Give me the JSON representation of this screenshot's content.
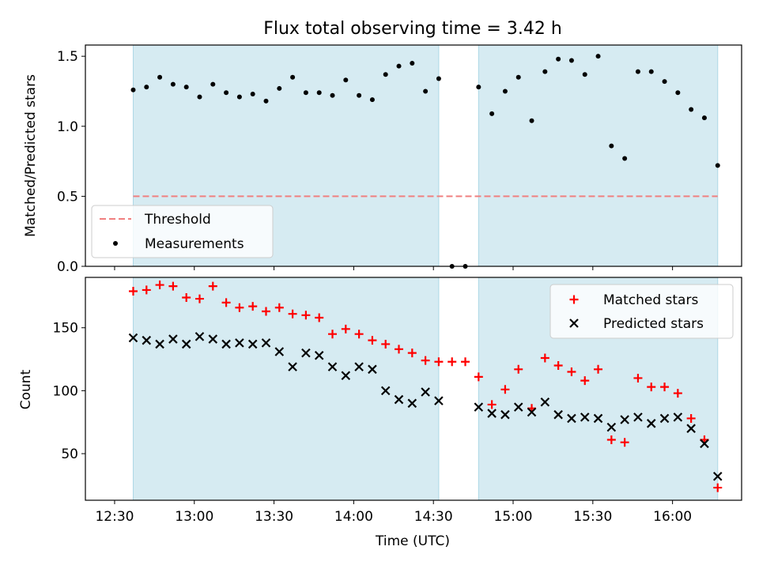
{
  "title": "Flux total observing time = 3.42 h",
  "colors": {
    "shade": "#add8e6",
    "threshold": "#f08080",
    "matched": "#ff0000",
    "predicted": "#000000",
    "measurement": "#000000"
  },
  "chart_data": [
    {
      "type": "scatter",
      "ylabel": "Matched/Predicted stars",
      "xlim": [
        "12:19",
        "16:26"
      ],
      "ylim": [
        0,
        1.58
      ],
      "yticks": [
        0.0,
        0.5,
        1.0,
        1.5
      ],
      "ytick_labels": [
        "0.0",
        "0.5",
        "1.0",
        "1.5"
      ],
      "legend_position": "lower-left",
      "shaded_intervals": [
        [
          "12:37",
          "14:32"
        ],
        [
          "14:47",
          "16:17"
        ]
      ],
      "threshold": {
        "name": "Threshold",
        "value": 0.5,
        "x_range": [
          "12:37",
          "16:17"
        ]
      },
      "series": [
        {
          "name": "Measurements",
          "x": [
            "12:37",
            "12:42",
            "12:47",
            "12:52",
            "12:57",
            "13:02",
            "13:07",
            "13:12",
            "13:17",
            "13:22",
            "13:27",
            "13:32",
            "13:37",
            "13:42",
            "13:47",
            "13:52",
            "13:57",
            "14:02",
            "14:07",
            "14:12",
            "14:17",
            "14:22",
            "14:27",
            "14:32",
            "14:37",
            "14:42",
            "14:47",
            "14:52",
            "14:57",
            "15:02",
            "15:07",
            "15:12",
            "15:17",
            "15:22",
            "15:27",
            "15:32",
            "15:37",
            "15:42",
            "15:47",
            "15:52",
            "15:57",
            "16:02",
            "16:07",
            "16:12",
            "16:17"
          ],
          "y": [
            1.26,
            1.28,
            1.35,
            1.3,
            1.28,
            1.21,
            1.3,
            1.24,
            1.21,
            1.23,
            1.18,
            1.27,
            1.35,
            1.24,
            1.24,
            1.22,
            1.33,
            1.22,
            1.19,
            1.37,
            1.43,
            1.45,
            1.25,
            1.34,
            0.0,
            0.0,
            1.28,
            1.09,
            1.25,
            1.35,
            1.04,
            1.39,
            1.48,
            1.47,
            1.37,
            1.5,
            0.86,
            0.77,
            1.39,
            1.39,
            1.32,
            1.24,
            1.12,
            1.06,
            0.72
          ]
        }
      ]
    },
    {
      "type": "scatter",
      "xlabel": "Time (UTC)",
      "ylabel": "Count",
      "xlim": [
        "12:19",
        "16:26"
      ],
      "ylim": [
        13,
        190
      ],
      "xticks": [
        "12:30",
        "13:00",
        "13:30",
        "14:00",
        "14:30",
        "15:00",
        "15:30",
        "16:00"
      ],
      "yticks": [
        50,
        100,
        150
      ],
      "ytick_labels": [
        "50",
        "100",
        "150"
      ],
      "legend_position": "top-right",
      "shaded_intervals": [
        [
          "12:37",
          "14:32"
        ],
        [
          "14:47",
          "16:17"
        ]
      ],
      "series": [
        {
          "name": "Matched stars",
          "marker": "plus",
          "x": [
            "12:37",
            "12:42",
            "12:47",
            "12:52",
            "12:57",
            "13:02",
            "13:07",
            "13:12",
            "13:17",
            "13:22",
            "13:27",
            "13:32",
            "13:37",
            "13:42",
            "13:47",
            "13:52",
            "13:57",
            "14:02",
            "14:07",
            "14:12",
            "14:17",
            "14:22",
            "14:27",
            "14:32",
            "14:37",
            "14:42",
            "14:47",
            "14:52",
            "14:57",
            "15:02",
            "15:07",
            "15:12",
            "15:17",
            "15:22",
            "15:27",
            "15:32",
            "15:37",
            "15:42",
            "15:47",
            "15:52",
            "15:57",
            "16:02",
            "16:07",
            "16:12",
            "16:17"
          ],
          "y": [
            179,
            180,
            184,
            183,
            174,
            173,
            183,
            170,
            166,
            167,
            163,
            166,
            161,
            160,
            158,
            145,
            149,
            145,
            140,
            137,
            133,
            130,
            124,
            123,
            123,
            123,
            111,
            89,
            101,
            117,
            86,
            126,
            120,
            115,
            108,
            117,
            61,
            59,
            110,
            103,
            103,
            98,
            78,
            61,
            23
          ]
        },
        {
          "name": "Predicted stars",
          "marker": "x",
          "x": [
            "12:37",
            "12:42",
            "12:47",
            "12:52",
            "12:57",
            "13:02",
            "13:07",
            "13:12",
            "13:17",
            "13:22",
            "13:27",
            "13:32",
            "13:37",
            "13:42",
            "13:47",
            "13:52",
            "13:57",
            "14:02",
            "14:07",
            "14:12",
            "14:17",
            "14:22",
            "14:27",
            "14:32",
            "14:47",
            "14:52",
            "14:57",
            "15:02",
            "15:07",
            "15:12",
            "15:17",
            "15:22",
            "15:27",
            "15:32",
            "15:37",
            "15:42",
            "15:47",
            "15:52",
            "15:57",
            "16:02",
            "16:07",
            "16:12",
            "16:17"
          ],
          "y": [
            142,
            140,
            137,
            141,
            137,
            143,
            141,
            137,
            138,
            137,
            138,
            131,
            119,
            130,
            128,
            119,
            112,
            119,
            117,
            100,
            93,
            90,
            99,
            92,
            87,
            82,
            81,
            87,
            83,
            91,
            81,
            78,
            79,
            78,
            71,
            77,
            79,
            74,
            78,
            79,
            70,
            58,
            32
          ]
        }
      ]
    }
  ]
}
